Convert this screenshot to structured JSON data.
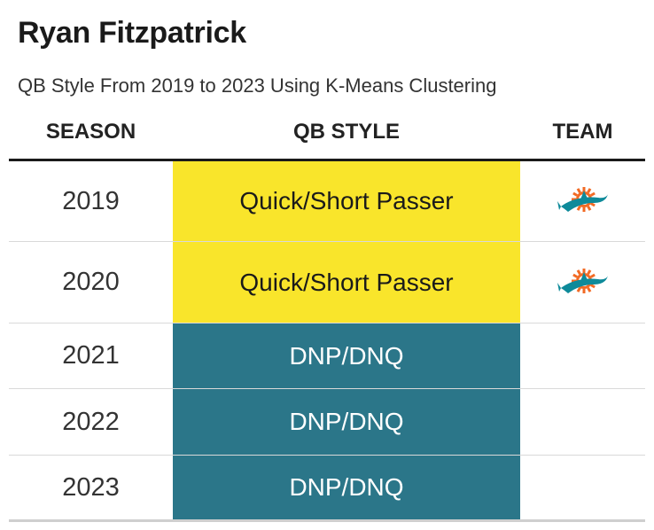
{
  "title": "Ryan Fitzpatrick",
  "subtitle": "QB Style From 2019 to 2023 Using K-Means Clustering",
  "columns": {
    "season": "SEASON",
    "style": "QB STYLE",
    "team": "TEAM"
  },
  "colors": {
    "quick_short": "#f9e52b",
    "dnp": "#2b7689",
    "text_dark": "#1a1a1a",
    "text_light": "#ffffff",
    "dolphins_aqua": "#0e8a9a",
    "dolphins_orange": "#f26a24"
  },
  "rows": [
    {
      "season": "2019",
      "style": "Quick/Short Passer",
      "style_key": "quick_short",
      "team": "Miami Dolphins",
      "team_icon": "dolphins-logo-icon"
    },
    {
      "season": "2020",
      "style": "Quick/Short Passer",
      "style_key": "quick_short",
      "team": "Miami Dolphins",
      "team_icon": "dolphins-logo-icon"
    },
    {
      "season": "2021",
      "style": "DNP/DNQ",
      "style_key": "dnp",
      "team": "",
      "team_icon": ""
    },
    {
      "season": "2022",
      "style": "DNP/DNQ",
      "style_key": "dnp",
      "team": "",
      "team_icon": ""
    },
    {
      "season": "2023",
      "style": "DNP/DNQ",
      "style_key": "dnp",
      "team": "",
      "team_icon": ""
    }
  ]
}
